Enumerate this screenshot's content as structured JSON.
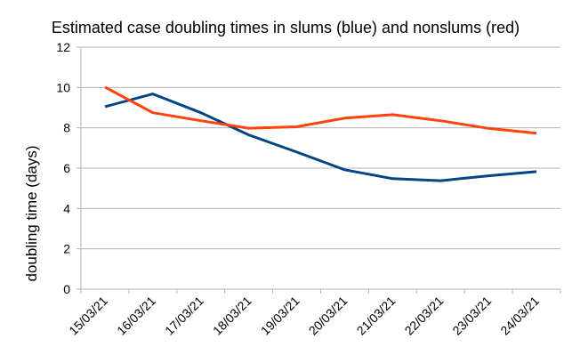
{
  "chart_data": {
    "type": "line",
    "title": "Estimated case doubling times in slums (blue) and nonslums (red)",
    "xlabel": "",
    "ylabel": "doubling time (days)",
    "categories": [
      "15/03/21",
      "16/03/21",
      "17/03/21",
      "18/03/21",
      "19/03/21",
      "20/03/21",
      "21/03/21",
      "22/03/21",
      "23/03/21",
      "24/03/21"
    ],
    "ylim": [
      0,
      12
    ],
    "yticks": [
      0,
      2,
      4,
      6,
      8,
      10,
      12
    ],
    "grid": true,
    "series": [
      {
        "color": "#004586",
        "values": [
          9.05,
          9.68,
          8.75,
          7.65,
          6.8,
          5.92,
          5.48,
          5.38,
          5.62,
          5.83
        ]
      },
      {
        "color": "#ff420e",
        "values": [
          10.02,
          8.75,
          8.35,
          7.98,
          8.05,
          8.48,
          8.65,
          8.35,
          7.97,
          7.73
        ]
      }
    ]
  }
}
